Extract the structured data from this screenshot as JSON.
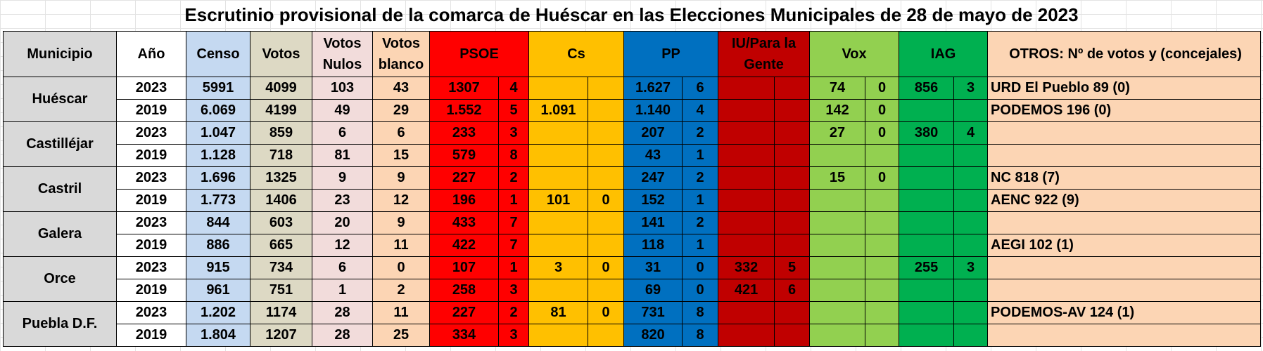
{
  "title": "Escrutinio provisional de la comarca de Huéscar en las Elecciones Municipales de 28 de mayo de 2023",
  "headers": {
    "municipio": "Municipio",
    "anio": "Año",
    "censo": "Censo",
    "votos": "Votos",
    "nulos": "Votos Nulos",
    "blanco": "Votos blanco",
    "psoe": "PSOE",
    "cs": "Cs",
    "pp": "PP",
    "iu": "IU/Para la Gente",
    "vox": "Vox",
    "iag": "IAG",
    "otros": "OTROS: Nº de votos y (concejales)"
  },
  "rows": [
    {
      "municipio": "Huéscar",
      "anio": "2023",
      "censo": "5991",
      "votos": "4099",
      "nulos": "103",
      "blanco": "43",
      "psoe_v": "1307",
      "psoe_c": "4",
      "cs_v": "",
      "cs_c": "",
      "pp_v": "1.627",
      "pp_c": "6",
      "iu_v": "",
      "iu_c": "",
      "vox_v": "74",
      "vox_c": "0",
      "iag_v": "856",
      "iag_c": "3",
      "otros": "URD El Pueblo 89 (0)"
    },
    {
      "municipio": "",
      "anio": "2019",
      "censo": "6.069",
      "votos": "4199",
      "nulos": "49",
      "blanco": "29",
      "psoe_v": "1.552",
      "psoe_c": "5",
      "cs_v": "1.091",
      "cs_c": "",
      "pp_v": "1.140",
      "pp_c": "4",
      "iu_v": "",
      "iu_c": "",
      "vox_v": "142",
      "vox_c": "0",
      "iag_v": "",
      "iag_c": "",
      "otros": "PODEMOS 196 (0)"
    },
    {
      "municipio": "Castilléjar",
      "anio": "2023",
      "censo": "1.047",
      "votos": "859",
      "nulos": "6",
      "blanco": "6",
      "psoe_v": "233",
      "psoe_c": "3",
      "cs_v": "",
      "cs_c": "",
      "pp_v": "207",
      "pp_c": "2",
      "iu_v": "",
      "iu_c": "",
      "vox_v": "27",
      "vox_c": "0",
      "iag_v": "380",
      "iag_c": "4",
      "otros": ""
    },
    {
      "municipio": "",
      "anio": "2019",
      "censo": "1.128",
      "votos": "718",
      "nulos": "81",
      "blanco": "15",
      "psoe_v": "579",
      "psoe_c": "8",
      "cs_v": "",
      "cs_c": "",
      "pp_v": "43",
      "pp_c": "1",
      "iu_v": "",
      "iu_c": "",
      "vox_v": "",
      "vox_c": "",
      "iag_v": "",
      "iag_c": "",
      "otros": ""
    },
    {
      "municipio": "Castril",
      "anio": "2023",
      "censo": "1.696",
      "votos": "1325",
      "nulos": "9",
      "blanco": "9",
      "psoe_v": "227",
      "psoe_c": "2",
      "cs_v": "",
      "cs_c": "",
      "pp_v": "247",
      "pp_c": "2",
      "iu_v": "",
      "iu_c": "",
      "vox_v": "15",
      "vox_c": "0",
      "iag_v": "",
      "iag_c": "",
      "otros": "NC 818 (7)"
    },
    {
      "municipio": "",
      "anio": "2019",
      "censo": "1.773",
      "votos": "1406",
      "nulos": "23",
      "blanco": "12",
      "psoe_v": "196",
      "psoe_c": "1",
      "cs_v": "101",
      "cs_c": "0",
      "pp_v": "152",
      "pp_c": "1",
      "iu_v": "",
      "iu_c": "",
      "vox_v": "",
      "vox_c": "",
      "iag_v": "",
      "iag_c": "",
      "otros": "AENC 922 (9)"
    },
    {
      "municipio": "Galera",
      "anio": "2023",
      "censo": "844",
      "votos": "603",
      "nulos": "20",
      "blanco": "9",
      "psoe_v": "433",
      "psoe_c": "7",
      "cs_v": "",
      "cs_c": "",
      "pp_v": "141",
      "pp_c": "2",
      "iu_v": "",
      "iu_c": "",
      "vox_v": "",
      "vox_c": "",
      "iag_v": "",
      "iag_c": "",
      "otros": ""
    },
    {
      "municipio": "",
      "anio": "2019",
      "censo": "886",
      "votos": "665",
      "nulos": "12",
      "blanco": "11",
      "psoe_v": "422",
      "psoe_c": "7",
      "cs_v": "",
      "cs_c": "",
      "pp_v": "118",
      "pp_c": "1",
      "iu_v": "",
      "iu_c": "",
      "vox_v": "",
      "vox_c": "",
      "iag_v": "",
      "iag_c": "",
      "otros": "AEGI 102 (1)"
    },
    {
      "municipio": "Orce",
      "anio": "2023",
      "censo": "915",
      "votos": "734",
      "nulos": "6",
      "blanco": "0",
      "psoe_v": "107",
      "psoe_c": "1",
      "cs_v": "3",
      "cs_c": "0",
      "pp_v": "31",
      "pp_c": "0",
      "iu_v": "332",
      "iu_c": "5",
      "vox_v": "",
      "vox_c": "",
      "iag_v": "255",
      "iag_c": "3",
      "otros": ""
    },
    {
      "municipio": "",
      "anio": "2019",
      "censo": "961",
      "votos": "751",
      "nulos": "1",
      "blanco": "2",
      "psoe_v": "258",
      "psoe_c": "3",
      "cs_v": "",
      "cs_c": "",
      "pp_v": "69",
      "pp_c": "0",
      "iu_v": "421",
      "iu_c": "6",
      "vox_v": "",
      "vox_c": "",
      "iag_v": "",
      "iag_c": "",
      "otros": ""
    },
    {
      "municipio": "Puebla D.F.",
      "anio": "2023",
      "censo": "1.202",
      "votos": "1174",
      "nulos": "28",
      "blanco": "11",
      "psoe_v": "227",
      "psoe_c": "2",
      "cs_v": "81",
      "cs_c": "0",
      "pp_v": "731",
      "pp_c": "8",
      "iu_v": "",
      "iu_c": "",
      "vox_v": "",
      "vox_c": "",
      "iag_v": "",
      "iag_c": "",
      "otros": "PODEMOS-AV 124 (1)"
    },
    {
      "municipio": "",
      "anio": "2019",
      "censo": "1.804",
      "votos": "1207",
      "nulos": "28",
      "blanco": "25",
      "psoe_v": "334",
      "psoe_c": "3",
      "cs_v": "",
      "cs_c": "",
      "pp_v": "820",
      "pp_c": "8",
      "iu_v": "",
      "iu_c": "",
      "vox_v": "",
      "vox_c": "",
      "iag_v": "",
      "iag_c": "",
      "otros": ""
    }
  ]
}
